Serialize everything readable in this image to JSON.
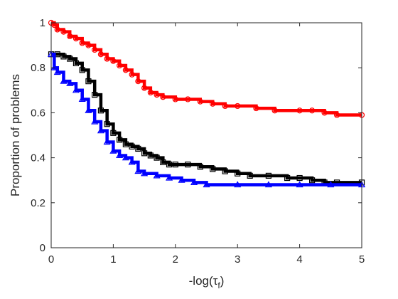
{
  "chart_data": {
    "type": "line",
    "title": "",
    "xlabel": "-log(τ",
    "xlabel_sub": "f",
    "xlabel_close": ")",
    "ylabel": "Proportion of problems",
    "xlim": [
      0,
      5
    ],
    "ylim": [
      0,
      1
    ],
    "xticks": [
      0,
      1,
      2,
      3,
      4,
      5
    ],
    "yticks": [
      0,
      0.2,
      0.4,
      0.6,
      0.8,
      1
    ],
    "xtick_labels": [
      "0",
      "1",
      "2",
      "3",
      "4",
      "5"
    ],
    "ytick_labels": [
      "0",
      "0.2",
      "0.4",
      "0.6",
      "0.8",
      "1"
    ],
    "grid": false,
    "box": true,
    "series": [
      {
        "color": "#ff0000",
        "marker": "circle",
        "x": [
          0,
          0.05,
          0.1,
          0.2,
          0.3,
          0.4,
          0.5,
          0.6,
          0.7,
          0.8,
          0.9,
          1.0,
          1.1,
          1.2,
          1.3,
          1.4,
          1.5,
          1.6,
          1.7,
          1.8,
          2.0,
          2.2,
          2.4,
          2.6,
          2.8,
          3.0,
          3.3,
          3.6,
          4.0,
          4.2,
          4.4,
          4.6,
          5.0
        ],
        "y": [
          1.0,
          0.99,
          0.97,
          0.96,
          0.94,
          0.93,
          0.91,
          0.9,
          0.88,
          0.86,
          0.84,
          0.83,
          0.81,
          0.79,
          0.77,
          0.74,
          0.71,
          0.69,
          0.68,
          0.67,
          0.66,
          0.66,
          0.65,
          0.64,
          0.63,
          0.63,
          0.62,
          0.61,
          0.61,
          0.61,
          0.6,
          0.59,
          0.59
        ]
      },
      {
        "color": "#000000",
        "marker": "square",
        "x": [
          0,
          0.1,
          0.2,
          0.3,
          0.4,
          0.5,
          0.6,
          0.7,
          0.8,
          0.9,
          1.0,
          1.1,
          1.2,
          1.3,
          1.4,
          1.5,
          1.6,
          1.7,
          1.8,
          1.9,
          2.0,
          2.2,
          2.4,
          2.6,
          2.8,
          3.0,
          3.2,
          3.5,
          3.8,
          4.0,
          4.2,
          4.4,
          4.6,
          5.0
        ],
        "y": [
          0.86,
          0.86,
          0.85,
          0.84,
          0.82,
          0.79,
          0.74,
          0.68,
          0.61,
          0.55,
          0.51,
          0.48,
          0.46,
          0.45,
          0.44,
          0.42,
          0.41,
          0.4,
          0.38,
          0.37,
          0.37,
          0.37,
          0.36,
          0.35,
          0.34,
          0.33,
          0.32,
          0.32,
          0.31,
          0.31,
          0.3,
          0.29,
          0.29,
          0.29
        ]
      },
      {
        "color": "#0000ff",
        "marker": "triangle",
        "x": [
          0,
          0.05,
          0.1,
          0.2,
          0.3,
          0.4,
          0.5,
          0.6,
          0.7,
          0.8,
          0.9,
          1.0,
          1.1,
          1.2,
          1.3,
          1.4,
          1.5,
          1.7,
          1.9,
          2.1,
          2.3,
          2.5,
          3.0,
          3.5,
          4.0,
          4.5,
          5.0
        ],
        "y": [
          0.86,
          0.8,
          0.78,
          0.74,
          0.73,
          0.7,
          0.66,
          0.61,
          0.56,
          0.52,
          0.47,
          0.43,
          0.41,
          0.4,
          0.38,
          0.34,
          0.33,
          0.32,
          0.31,
          0.3,
          0.29,
          0.28,
          0.28,
          0.28,
          0.28,
          0.28,
          0.28
        ]
      }
    ]
  }
}
